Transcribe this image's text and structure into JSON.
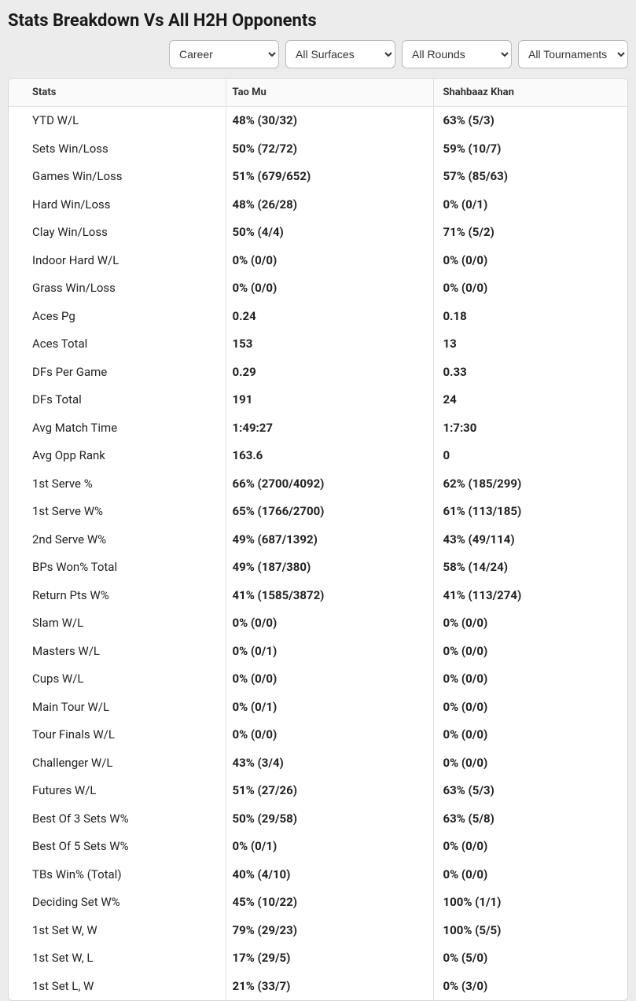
{
  "title": "Stats Breakdown Vs All H2H Opponents",
  "filters": {
    "period": "Career",
    "surface": "All Surfaces",
    "round": "All Rounds",
    "tournament": "All Tournaments"
  },
  "headers": {
    "stats": "Stats",
    "player1": "Tao Mu",
    "player2": "Shahbaaz Khan"
  },
  "rows": [
    {
      "stat": "YTD W/L",
      "p1": "48% (30/32)",
      "p2": "63% (5/3)"
    },
    {
      "stat": "Sets Win/Loss",
      "p1": "50% (72/72)",
      "p2": "59% (10/7)"
    },
    {
      "stat": "Games Win/Loss",
      "p1": "51% (679/652)",
      "p2": "57% (85/63)"
    },
    {
      "stat": "Hard Win/Loss",
      "p1": "48% (26/28)",
      "p2": "0% (0/1)"
    },
    {
      "stat": "Clay Win/Loss",
      "p1": "50% (4/4)",
      "p2": "71% (5/2)"
    },
    {
      "stat": "Indoor Hard W/L",
      "p1": "0% (0/0)",
      "p2": "0% (0/0)"
    },
    {
      "stat": "Grass Win/Loss",
      "p1": "0% (0/0)",
      "p2": "0% (0/0)"
    },
    {
      "stat": "Aces Pg",
      "p1": "0.24",
      "p2": "0.18"
    },
    {
      "stat": "Aces Total",
      "p1": "153",
      "p2": "13"
    },
    {
      "stat": "DFs Per Game",
      "p1": "0.29",
      "p2": "0.33"
    },
    {
      "stat": "DFs Total",
      "p1": "191",
      "p2": "24"
    },
    {
      "stat": "Avg Match Time",
      "p1": "1:49:27",
      "p2": "1:7:30"
    },
    {
      "stat": "Avg Opp Rank",
      "p1": "163.6",
      "p2": "0"
    },
    {
      "stat": "1st Serve %",
      "p1": "66% (2700/4092)",
      "p2": "62% (185/299)"
    },
    {
      "stat": "1st Serve W%",
      "p1": "65% (1766/2700)",
      "p2": "61% (113/185)"
    },
    {
      "stat": "2nd Serve W%",
      "p1": "49% (687/1392)",
      "p2": "43% (49/114)"
    },
    {
      "stat": "BPs Won% Total",
      "p1": "49% (187/380)",
      "p2": "58% (14/24)"
    },
    {
      "stat": "Return Pts W%",
      "p1": "41% (1585/3872)",
      "p2": "41% (113/274)"
    },
    {
      "stat": "Slam W/L",
      "p1": "0% (0/0)",
      "p2": "0% (0/0)"
    },
    {
      "stat": "Masters W/L",
      "p1": "0% (0/1)",
      "p2": "0% (0/0)"
    },
    {
      "stat": "Cups W/L",
      "p1": "0% (0/0)",
      "p2": "0% (0/0)"
    },
    {
      "stat": "Main Tour W/L",
      "p1": "0% (0/1)",
      "p2": "0% (0/0)"
    },
    {
      "stat": "Tour Finals W/L",
      "p1": "0% (0/0)",
      "p2": "0% (0/0)"
    },
    {
      "stat": "Challenger W/L",
      "p1": "43% (3/4)",
      "p2": "0% (0/0)"
    },
    {
      "stat": "Futures W/L",
      "p1": "51% (27/26)",
      "p2": "63% (5/3)"
    },
    {
      "stat": "Best Of 3 Sets W%",
      "p1": "50% (29/58)",
      "p2": "63% (5/8)"
    },
    {
      "stat": "Best Of 5 Sets W%",
      "p1": "0% (0/1)",
      "p2": "0% (0/0)"
    },
    {
      "stat": "TBs Win% (Total)",
      "p1": "40% (4/10)",
      "p2": "0% (0/0)"
    },
    {
      "stat": "Deciding Set W%",
      "p1": "45% (10/22)",
      "p2": "100% (1/1)"
    },
    {
      "stat": "1st Set W, W",
      "p1": "79% (29/23)",
      "p2": "100% (5/5)"
    },
    {
      "stat": "1st Set W, L",
      "p1": "17% (29/5)",
      "p2": "0% (5/0)"
    },
    {
      "stat": "1st Set L, W",
      "p1": "21% (33/7)",
      "p2": "0% (3/0)"
    }
  ],
  "colors": {
    "page_bg": "#ececec",
    "card_bg": "#ffffff",
    "border": "#d7d7d7",
    "header_bg": "#fafafa",
    "text": "#222222"
  }
}
